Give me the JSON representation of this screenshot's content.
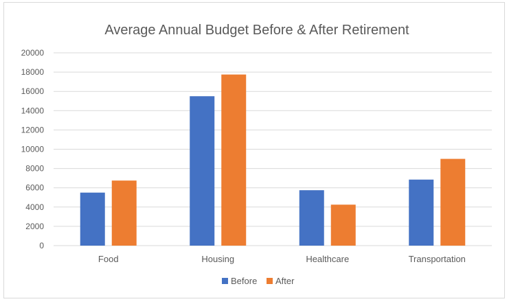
{
  "chart_data": {
    "type": "bar",
    "title": "Average Annual Budget Before & After Retirement",
    "xlabel": "",
    "ylabel": "",
    "categories": [
      "Food",
      "Housing",
      "Healthcare",
      "Transportation"
    ],
    "series": [
      {
        "name": "Before",
        "color": "#4472c4",
        "values": [
          5500,
          15500,
          5750,
          6850
        ]
      },
      {
        "name": "After",
        "color": "#ed7d31",
        "values": [
          6750,
          17750,
          4250,
          9000
        ]
      }
    ],
    "ylim": [
      0,
      20000
    ],
    "yticks": [
      "0",
      "2000",
      "4000",
      "6000",
      "8000",
      "10000",
      "12000",
      "14000",
      "16000",
      "18000",
      "20000"
    ],
    "grid": true,
    "legend_position": "bottom"
  }
}
